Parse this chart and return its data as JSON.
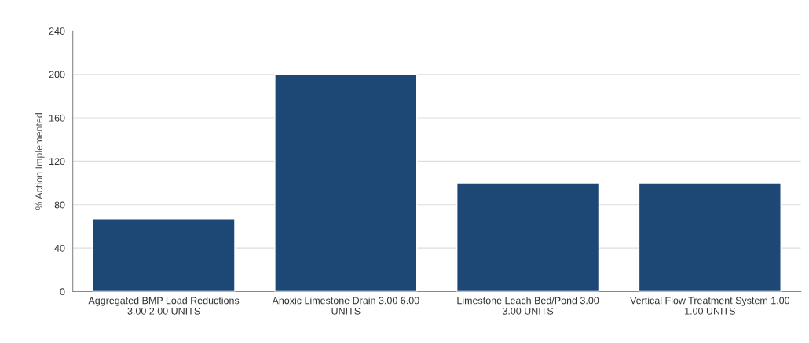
{
  "chart_data": {
    "type": "bar",
    "ylabel": "% Action Implemented",
    "categories": [
      "Aggregated BMP Load Reductions 3.00 2.00 UNITS",
      "Anoxic Limestone Drain 3.00 6.00 UNITS",
      "Limestone Leach Bed/Pond 3.00 3.00 UNITS",
      "Vertical Flow Treatment System 1.00 1.00 UNITS"
    ],
    "values": [
      67,
      200,
      100,
      100
    ],
    "color": "#1d4775",
    "ylim": [
      0,
      240
    ],
    "yticks": [
      0,
      40,
      80,
      120,
      160,
      200,
      240
    ],
    "grid": "y"
  }
}
